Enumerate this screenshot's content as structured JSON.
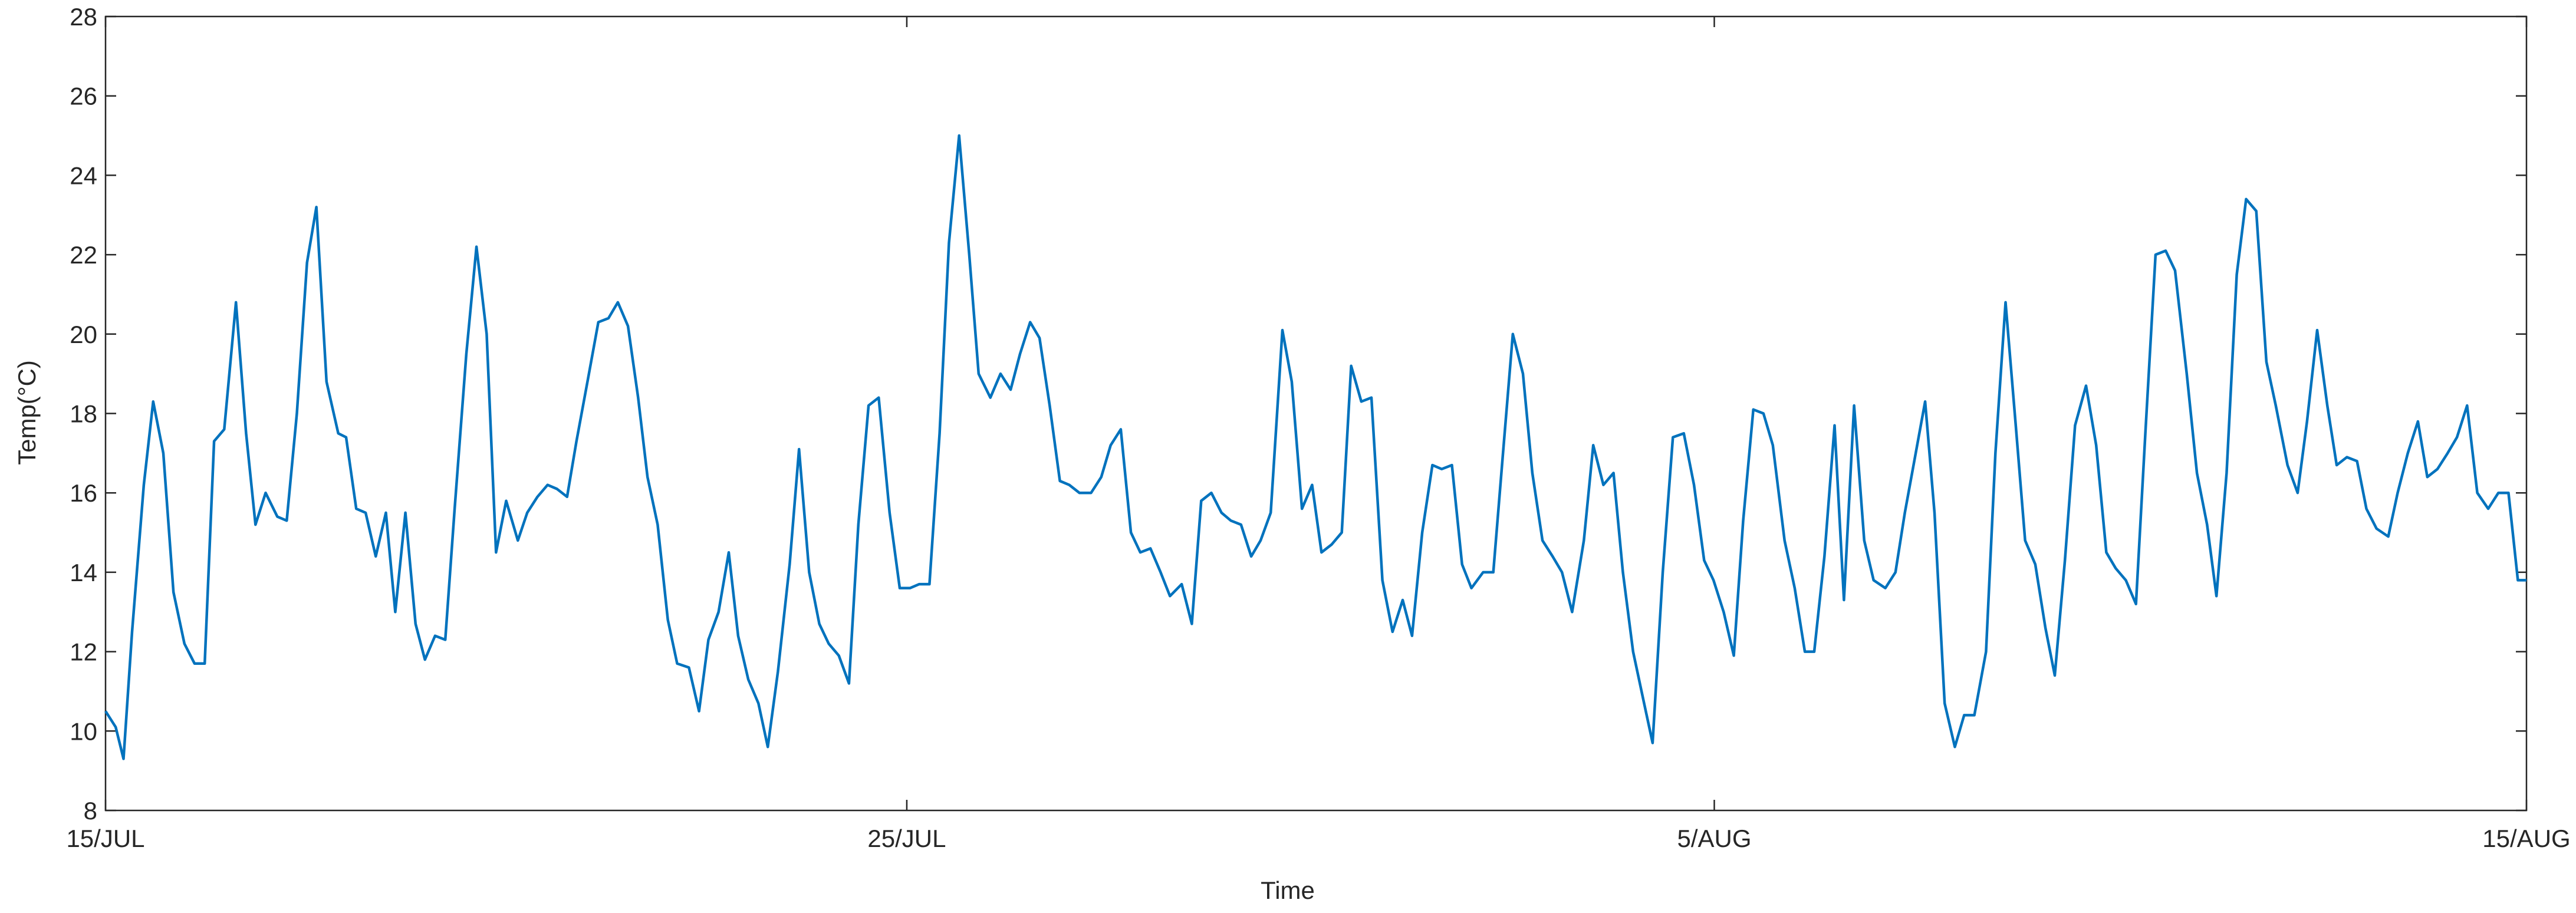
{
  "chart_data": {
    "type": "line",
    "xlabel": "Time",
    "ylabel": "Temp(°C)",
    "xlim": [
      0,
      31
    ],
    "ylim": [
      8,
      28
    ],
    "xticks": [
      {
        "value": 0,
        "label": "15/JUL"
      },
      {
        "value": 10.26,
        "label": "25/JUL"
      },
      {
        "value": 20.6,
        "label": "5/AUG"
      },
      {
        "value": 31,
        "label": "15/AUG"
      }
    ],
    "yticks": [
      8,
      10,
      12,
      14,
      16,
      18,
      20,
      22,
      24,
      26,
      28
    ],
    "grid": false,
    "series": [
      {
        "color": "#0072bd",
        "x": [
          0,
          0.13,
          0.23,
          0.34,
          0.49,
          0.61,
          0.74,
          0.87,
          1.01,
          1.14,
          1.27,
          1.39,
          1.52,
          1.67,
          1.8,
          1.92,
          2.05,
          2.2,
          2.32,
          2.45,
          2.58,
          2.7,
          2.83,
          2.98,
          3.08,
          3.21,
          3.33,
          3.46,
          3.59,
          3.71,
          3.84,
          3.97,
          4.09,
          4.22,
          4.35,
          4.47,
          4.62,
          4.75,
          4.88,
          5,
          5.13,
          5.28,
          5.4,
          5.53,
          5.66,
          5.78,
          5.91,
          6.03,
          6.18,
          6.31,
          6.44,
          6.56,
          6.69,
          6.82,
          6.94,
          7.07,
          7.2,
          7.32,
          7.47,
          7.6,
          7.72,
          7.85,
          7.98,
          8.1,
          8.23,
          8.36,
          8.48,
          8.61,
          8.76,
          8.88,
          9.01,
          9.14,
          9.26,
          9.39,
          9.52,
          9.64,
          9.77,
          9.9,
          10.04,
          10.17,
          10.3,
          10.42,
          10.55,
          10.68,
          10.8,
          10.93,
          11.06,
          11.18,
          11.33,
          11.46,
          11.59,
          11.71,
          11.84,
          11.96,
          12.09,
          12.22,
          12.34,
          12.47,
          12.62,
          12.75,
          12.87,
          13,
          13.13,
          13.25,
          13.38,
          13.51,
          13.63,
          13.78,
          13.91,
          14.03,
          14.16,
          14.29,
          14.41,
          14.54,
          14.67,
          14.79,
          14.92,
          15.07,
          15.19,
          15.32,
          15.45,
          15.57,
          15.7,
          15.83,
          15.95,
          16.08,
          16.21,
          16.35,
          16.48,
          16.61,
          16.73,
          16.86,
          16.99,
          17.11,
          17.24,
          17.37,
          17.49,
          17.64,
          17.77,
          17.89,
          18.02,
          18.15,
          18.27,
          18.4,
          18.53,
          18.65,
          18.78,
          18.93,
          19.05,
          19.18,
          19.31,
          19.43,
          19.56,
          19.69,
          19.81,
          19.94,
          20.07,
          20.21,
          20.34,
          20.47,
          20.59,
          20.72,
          20.85,
          20.97,
          21.1,
          21.23,
          21.35,
          21.5,
          21.63,
          21.76,
          21.88,
          22.01,
          22.14,
          22.26,
          22.39,
          22.52,
          22.64,
          22.79,
          22.92,
          23.04,
          23.17,
          23.3,
          23.42,
          23.55,
          23.68,
          23.8,
          23.93,
          24.08,
          24.2,
          24.33,
          24.46,
          24.58,
          24.71,
          24.84,
          24.96,
          25.09,
          25.22,
          25.36,
          25.49,
          25.62,
          25.74,
          25.87,
          26,
          26.12,
          26.25,
          26.38,
          26.5,
          26.65,
          26.78,
          26.91,
          27.03,
          27.16,
          27.29,
          27.41,
          27.54,
          27.67,
          27.79,
          27.94,
          28.07,
          28.19,
          28.32,
          28.45,
          28.57,
          28.7,
          28.83,
          28.95,
          29.08,
          29.23,
          29.35,
          29.48,
          29.61,
          29.73,
          29.86,
          29.99,
          30.11,
          30.24,
          30.37,
          30.51,
          30.64,
          30.77,
          30.89,
          31
        ],
        "values": [
          10.5,
          10.1,
          9.3,
          12.5,
          16.2,
          18.3,
          17,
          13.5,
          12.2,
          11.7,
          11.7,
          17.3,
          17.6,
          20.8,
          17.5,
          15.2,
          16,
          15.4,
          15.3,
          18,
          21.8,
          23.2,
          18.8,
          17.5,
          17.4,
          15.6,
          15.5,
          14.4,
          15.5,
          13,
          15.5,
          12.7,
          11.8,
          12.4,
          12.3,
          15.6,
          19.5,
          22.2,
          20,
          14.5,
          15.8,
          14.8,
          15.5,
          15.9,
          16.2,
          16.1,
          15.9,
          17.3,
          18.9,
          20.3,
          20.4,
          20.8,
          20.2,
          18.4,
          16.4,
          15.2,
          12.8,
          11.7,
          11.6,
          10.5,
          12.3,
          13,
          14.5,
          12.4,
          11.3,
          10.7,
          9.6,
          11.5,
          14.2,
          17.1,
          14,
          12.7,
          12.2,
          11.9,
          11.2,
          15.2,
          18.2,
          18.4,
          15.5,
          13.6,
          13.6,
          13.7,
          13.7,
          17.5,
          22.3,
          25,
          22,
          19,
          18.4,
          19,
          18.6,
          19.5,
          20.3,
          19.9,
          18.2,
          16.3,
          16.2,
          16,
          16,
          16.4,
          17.2,
          17.6,
          15,
          14.5,
          14.6,
          14,
          13.4,
          13.7,
          12.7,
          15.8,
          16,
          15.5,
          15.3,
          15.2,
          14.4,
          14.8,
          15.5,
          20.1,
          18.8,
          15.6,
          16.2,
          14.5,
          14.7,
          15,
          19.2,
          18.3,
          18.4,
          13.8,
          12.5,
          13.3,
          12.4,
          15,
          16.7,
          16.6,
          16.7,
          14.2,
          13.6,
          14,
          14,
          16.9,
          20,
          19,
          16.5,
          14.8,
          14.4,
          14,
          13,
          14.8,
          17.2,
          16.2,
          16.5,
          14,
          12,
          10.8,
          9.7,
          14,
          17.4,
          17.5,
          16.2,
          14.3,
          13.8,
          13,
          11.9,
          15.3,
          18.1,
          18,
          17.2,
          14.8,
          13.6,
          12,
          12,
          14.4,
          17.7,
          13.3,
          18.2,
          14.8,
          13.8,
          13.6,
          14,
          15.5,
          16.9,
          18.3,
          15.5,
          10.7,
          9.6,
          10.4,
          10.4,
          12,
          17,
          20.8,
          17.7,
          14.8,
          14.2,
          12.6,
          11.4,
          14.3,
          17.7,
          18.7,
          17.2,
          14.5,
          14.1,
          13.8,
          13.2,
          17.5,
          22,
          22.1,
          21.6,
          19,
          16.5,
          15.2,
          13.4,
          16.5,
          21.5,
          23.4,
          23.1,
          19.3,
          18.2,
          16.7,
          16,
          17.8,
          20.1,
          18.2,
          16.7,
          16.9,
          16.8,
          15.6,
          15.1,
          14.9,
          16,
          17,
          17.8,
          16.4,
          16.6,
          17,
          17.4,
          18.2,
          16,
          15.6,
          16,
          16,
          13.8,
          13.8
        ]
      }
    ]
  }
}
